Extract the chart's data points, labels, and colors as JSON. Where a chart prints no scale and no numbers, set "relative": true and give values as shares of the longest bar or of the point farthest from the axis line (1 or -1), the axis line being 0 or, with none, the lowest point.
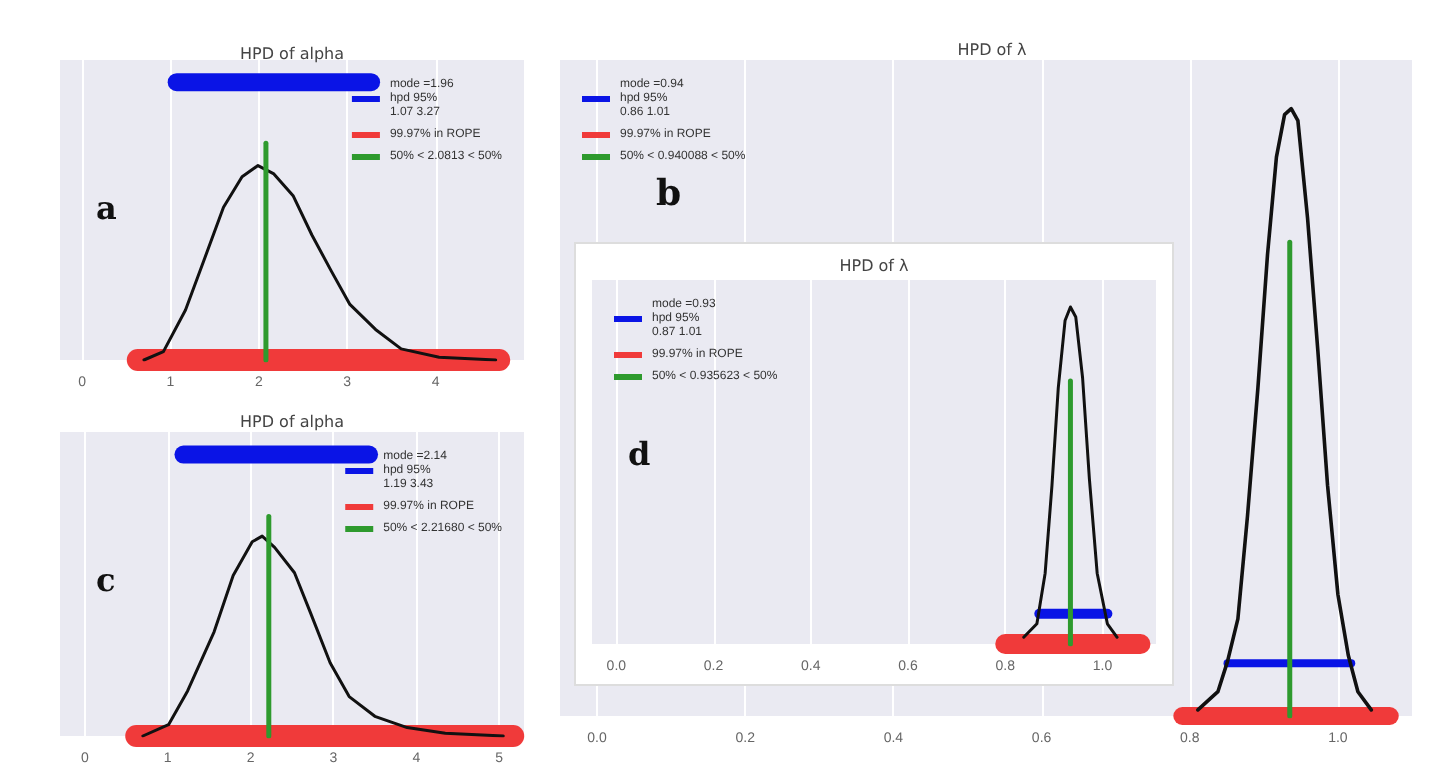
{
  "chart_data": [
    {
      "type": "line",
      "title": "HPD of alpha",
      "annotations": [
        "a"
      ],
      "xlim": [
        -0.25,
        5.0
      ],
      "xticks": [
        0,
        1,
        2,
        3,
        4
      ],
      "grid": "x",
      "legend": "top right",
      "relative": true,
      "tick_labels": "x",
      "marker": "none",
      "series": [
        {
          "color": "#111111",
          "x": [
            0.7,
            0.92,
            1.17,
            1.38,
            1.6,
            1.81,
            1.99,
            2.17,
            2.39,
            2.6,
            2.82,
            3.03,
            3.32,
            3.61,
            4.04,
            4.68
          ],
          "values": [
            0,
            0.03,
            0.18,
            0.36,
            0.55,
            0.66,
            0.7,
            0.67,
            0.59,
            0.45,
            0.32,
            0.2,
            0.11,
            0.04,
            0.01,
            0
          ]
        },
        {
          "name": "mode =1.96\nhpd 95%\n1.07 3.27",
          "color": "#0a14e6",
          "x": [
            1.07,
            3.27
          ],
          "values": [
            1,
            1
          ]
        },
        {
          "name": "99.97% in ROPE",
          "color": "#f03a3a",
          "x": [
            0.63,
            4.72
          ],
          "values": [
            0,
            0
          ]
        },
        {
          "name": "50% < 2.0813 < 50%",
          "color": "#2e9a2e",
          "x": [
            2.08,
            2.08
          ],
          "values": [
            0,
            0.78
          ]
        }
      ]
    },
    {
      "type": "line",
      "title": "HPD of λ",
      "annotations": [
        "b"
      ],
      "xlim": [
        -0.05,
        1.1
      ],
      "xticks": [
        {
          "value": 0,
          "label": "0.0"
        },
        {
          "value": 0.2,
          "label": "0.2"
        },
        {
          "value": 0.4,
          "label": "0.4"
        },
        {
          "value": 0.6,
          "label": "0.6"
        },
        {
          "value": 0.8,
          "label": "0.8"
        },
        {
          "value": 1,
          "label": "1.0"
        }
      ],
      "grid": "x",
      "legend": "top left",
      "relative": true,
      "tick_labels": "x",
      "marker": "none",
      "series": [
        {
          "color": "#111111",
          "x": [
            0.811,
            0.838,
            0.851,
            0.865,
            0.878,
            0.892,
            0.905,
            0.917,
            0.928,
            0.937,
            0.946,
            0.959,
            0.973,
            0.986,
            1.0,
            1.014,
            1.027,
            1.045
          ],
          "values": [
            0.01,
            0.04,
            0.09,
            0.16,
            0.33,
            0.54,
            0.76,
            0.92,
            0.99,
            1.0,
            0.98,
            0.82,
            0.6,
            0.38,
            0.2,
            0.1,
            0.04,
            0.01
          ]
        },
        {
          "name": "mode =0.94\nhpd 95%\n0.86 1.01",
          "color": "#0a14e6",
          "x": [
            0.851,
            1.018
          ],
          "values": [
            0.087,
            0.087
          ]
        },
        {
          "name": "99.97% in ROPE",
          "color": "#f03a3a",
          "x": [
            0.79,
            1.07
          ],
          "values": [
            0,
            0
          ]
        },
        {
          "name": "50% < 0.940088 < 50%",
          "color": "#2e9a2e",
          "x": [
            0.935,
            0.935
          ],
          "values": [
            0,
            0.78
          ]
        }
      ]
    },
    {
      "type": "line",
      "title": "HPD of alpha",
      "annotations": [
        "c"
      ],
      "xlim": [
        -0.3,
        5.3
      ],
      "xticks": [
        0,
        1,
        2,
        3,
        4,
        5
      ],
      "grid": "x",
      "legend": "top right",
      "relative": true,
      "tick_labels": "x",
      "marker": "none",
      "series": [
        {
          "color": "#111111",
          "x": [
            0.7,
            1.01,
            1.24,
            1.56,
            1.79,
            2.02,
            2.14,
            2.29,
            2.53,
            2.72,
            2.96,
            3.19,
            3.5,
            3.89,
            4.35,
            5.05
          ],
          "values": [
            0,
            0.04,
            0.16,
            0.37,
            0.57,
            0.69,
            0.71,
            0.67,
            0.58,
            0.44,
            0.26,
            0.14,
            0.07,
            0.03,
            0.01,
            0
          ]
        },
        {
          "name": "mode =2.14\nhpd 95%\n1.19 3.43",
          "color": "#0a14e6",
          "x": [
            1.19,
            3.43
          ],
          "values": [
            1,
            1
          ]
        },
        {
          "name": "99.97% in ROPE",
          "color": "#f03a3a",
          "x": [
            0.62,
            5.17
          ],
          "values": [
            0,
            0
          ]
        },
        {
          "name": "50% < 2.21680 < 50%",
          "color": "#2e9a2e",
          "x": [
            2.22,
            2.22
          ],
          "values": [
            0,
            0.78
          ]
        }
      ]
    },
    {
      "type": "line",
      "title": "HPD of λ",
      "annotations": [
        "d"
      ],
      "xlim": [
        -0.05,
        1.11
      ],
      "xticks": [
        {
          "value": 0,
          "label": "0.0"
        },
        {
          "value": 0.2,
          "label": "0.2"
        },
        {
          "value": 0.4,
          "label": "0.4"
        },
        {
          "value": 0.6,
          "label": "0.6"
        },
        {
          "value": 0.8,
          "label": "0.8"
        },
        {
          "value": 1,
          "label": "1.0"
        }
      ],
      "grid": "x",
      "legend": "top left",
      "relative": true,
      "tick_labels": "x",
      "marker": "none",
      "series": [
        {
          "color": "#111111",
          "x": [
            0.838,
            0.865,
            0.882,
            0.896,
            0.909,
            0.923,
            0.934,
            0.945,
            0.959,
            0.973,
            0.989,
            1.01,
            1.03
          ],
          "values": [
            0.02,
            0.06,
            0.21,
            0.47,
            0.76,
            0.96,
            1.0,
            0.97,
            0.79,
            0.49,
            0.21,
            0.06,
            0.02
          ]
        },
        {
          "name": "mode =0.93\nhpd 95%\n0.87 1.01",
          "color": "#0a14e6",
          "x": [
            0.87,
            1.01
          ],
          "values": [
            0.09,
            0.09
          ]
        },
        {
          "name": "99.97% in ROPE",
          "color": "#f03a3a",
          "x": [
            0.8,
            1.078
          ],
          "values": [
            0,
            0
          ]
        },
        {
          "name": "50% < 0.935623 < 50%",
          "color": "#2e9a2e",
          "x": [
            0.934,
            0.934
          ],
          "values": [
            0,
            0.78
          ]
        }
      ]
    }
  ]
}
